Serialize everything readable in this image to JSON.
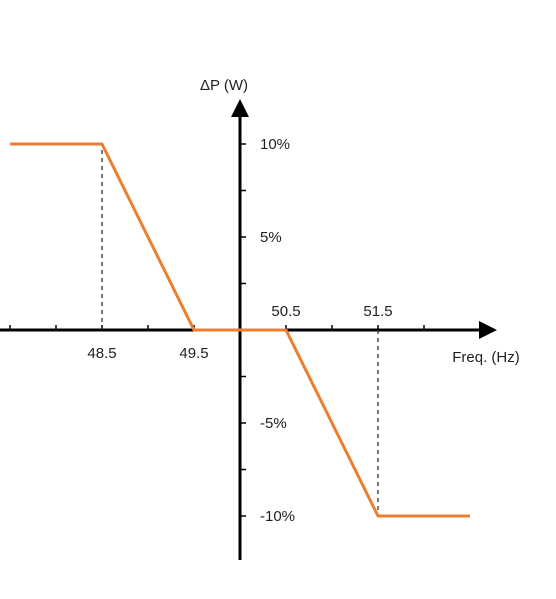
{
  "chart_data": {
    "type": "line",
    "title": "",
    "xlabel": "Freq. (Hz)",
    "ylabel": "ΔP (W)",
    "xticks": [
      {
        "value": 48.5,
        "label": "48.5",
        "position": "below"
      },
      {
        "value": 49.5,
        "label": "49.5",
        "position": "below"
      },
      {
        "value": 50.5,
        "label": "50.5",
        "position": "above"
      },
      {
        "value": 51.5,
        "label": "51.5",
        "position": "above"
      }
    ],
    "yticks": [
      {
        "value": 10,
        "label": "10%"
      },
      {
        "value": 5,
        "label": "5%"
      },
      {
        "value": -5,
        "label": "-5%"
      },
      {
        "value": -10,
        "label": "-10%"
      }
    ],
    "series": [
      {
        "color": "#ED7D31",
        "points": [
          {
            "x": 47.5,
            "y": 10
          },
          {
            "x": 48.5,
            "y": 10
          },
          {
            "x": 49.5,
            "y": 0
          },
          {
            "x": 50.5,
            "y": 0
          },
          {
            "x": 51.5,
            "y": -10
          },
          {
            "x": 52.5,
            "y": -10
          }
        ]
      }
    ],
    "reference_lines": [
      {
        "x": 48.5,
        "y_from": 0,
        "y_to": 10,
        "style": "dashed"
      },
      {
        "x": 51.5,
        "y_from": 0,
        "y_to": -10,
        "style": "dashed"
      }
    ],
    "xlim": [
      47.4,
      52.6
    ],
    "ylim": [
      -12.5,
      12.5
    ],
    "grid": false,
    "axis_color": "#000000"
  }
}
